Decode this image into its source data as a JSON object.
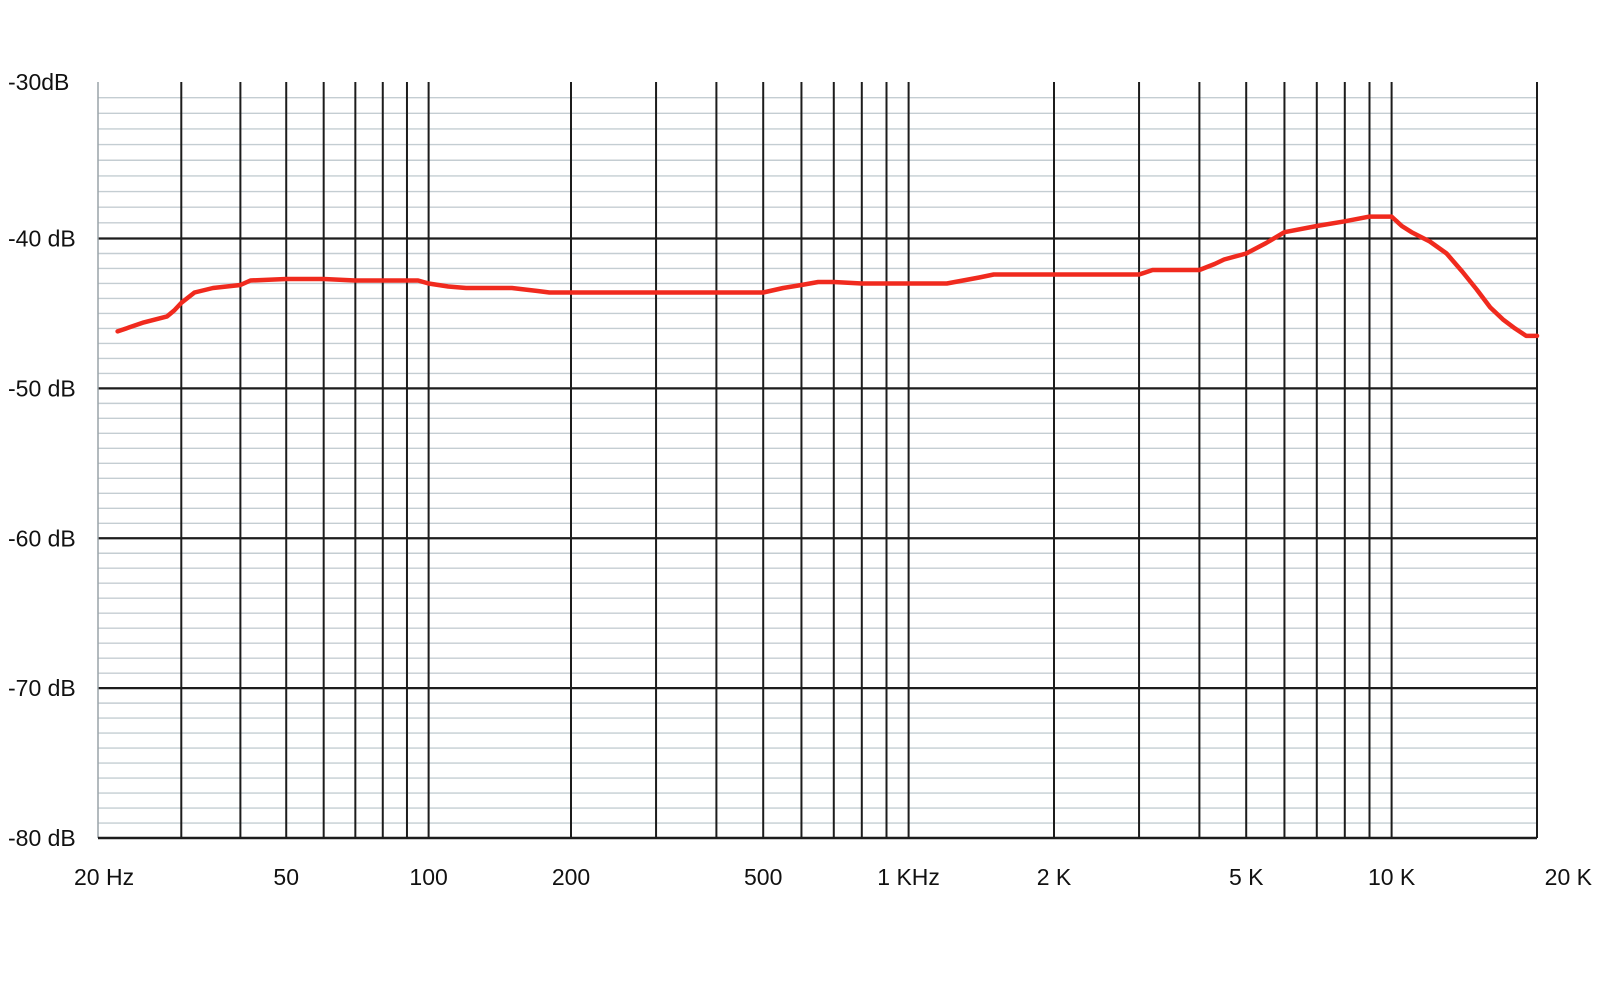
{
  "chart_data": {
    "type": "line",
    "title": "",
    "xlabel": "",
    "ylabel": "",
    "x_scale": "log",
    "xlim": [
      20,
      20000
    ],
    "ylim": [
      -80,
      -30
    ],
    "grid": true,
    "x_tick_values": [
      20,
      50,
      100,
      200,
      500,
      1000,
      2000,
      5000,
      10000,
      20000
    ],
    "x_tick_labels": [
      "20 Hz",
      "50",
      "100",
      "200",
      "500",
      "1 KHz",
      "2 K",
      "5 K",
      "10 K",
      "20 K"
    ],
    "y_tick_values": [
      -30,
      -40,
      -50,
      -60,
      -70,
      -80
    ],
    "y_tick_labels": [
      "-30dB",
      "-40 dB",
      "-50 dB",
      "-60 dB",
      "-70 dB",
      "-80 dB"
    ],
    "colors": {
      "series": "#f02a1e",
      "major_grid": "#1c1c1c",
      "minor_grid": "#c4cdd2",
      "axis": "#1c1c1c"
    },
    "series": [
      {
        "x": [
          22,
          25,
          28,
          29,
          30,
          32,
          35,
          40,
          42,
          50,
          60,
          70,
          80,
          95,
          100,
          110,
          120,
          150,
          170,
          180,
          200,
          300,
          400,
          500,
          550,
          600,
          650,
          700,
          800,
          900,
          1000,
          1200,
          1400,
          1500,
          2000,
          3000,
          3200,
          4000,
          4300,
          4500,
          5000,
          5500,
          6000,
          7000,
          8000,
          9000,
          10000,
          10500,
          11000,
          12000,
          13000,
          14000,
          15000,
          16000,
          17000,
          18000,
          19000,
          20000
        ],
        "y": [
          -46.2,
          -45.6,
          -45.2,
          -44.8,
          -44.3,
          -43.6,
          -43.3,
          -43.1,
          -42.8,
          -42.7,
          -42.7,
          -42.8,
          -42.8,
          -42.8,
          -43.0,
          -43.2,
          -43.3,
          -43.3,
          -43.5,
          -43.6,
          -43.6,
          -43.6,
          -43.6,
          -43.6,
          -43.3,
          -43.1,
          -42.9,
          -42.9,
          -43.0,
          -43.0,
          -43.0,
          -43.0,
          -42.6,
          -42.4,
          -42.4,
          -42.4,
          -42.1,
          -42.1,
          -41.7,
          -41.4,
          -41.0,
          -40.3,
          -39.6,
          -39.2,
          -38.9,
          -38.6,
          -38.6,
          -39.2,
          -39.6,
          -40.2,
          -41.0,
          -42.2,
          -43.4,
          -44.6,
          -45.4,
          -46.0,
          -46.5,
          -46.5
        ]
      }
    ]
  }
}
